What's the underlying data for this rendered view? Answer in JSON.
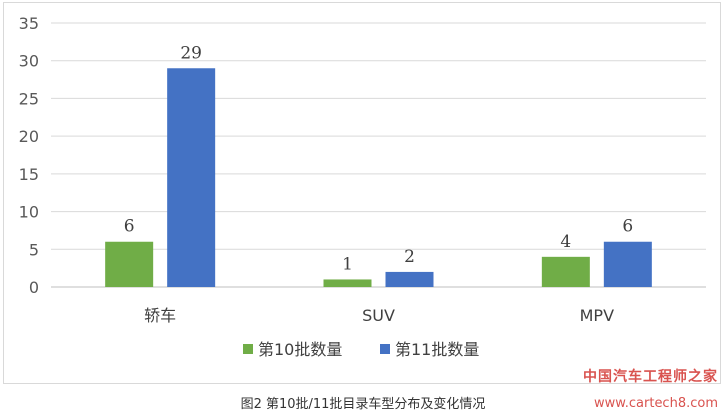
{
  "chart_data": {
    "type": "bar",
    "categories": [
      "轿车",
      "SUV",
      "MPV"
    ],
    "series": [
      {
        "name": "第10批数量",
        "values": [
          6,
          1,
          4
        ],
        "color": "#70ad47"
      },
      {
        "name": "第11批数量",
        "values": [
          29,
          2,
          6
        ],
        "color": "#4472c4"
      }
    ],
    "ylim": [
      0,
      35
    ],
    "yticks": [
      0,
      5,
      10,
      15,
      20,
      25,
      30,
      35
    ],
    "grid": true,
    "legend_position": "bottom",
    "title": "",
    "xlabel": "",
    "ylabel": ""
  },
  "caption": "图2 第10批/11批目录车型分布及变化情况",
  "watermark": {
    "line1": "中国汽车工程师之家",
    "line2": "www.cartech8.com"
  },
  "colors": {
    "gridline": "#d9d9d9"
  }
}
